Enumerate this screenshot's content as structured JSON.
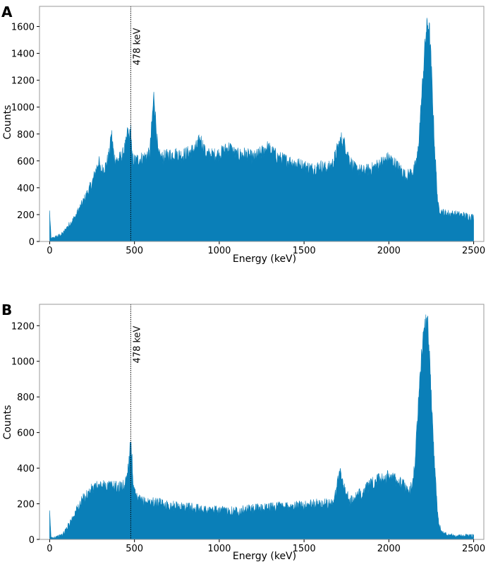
{
  "chart_data": [
    {
      "panel": "A",
      "type": "area",
      "xlabel": "Energy (keV)",
      "ylabel": "Counts",
      "xlim": [
        -60,
        2560
      ],
      "ylim": [
        0,
        1750
      ],
      "xticks": [
        0,
        500,
        1000,
        1500,
        2000,
        2500
      ],
      "yticks": [
        0,
        200,
        400,
        600,
        800,
        1000,
        1200,
        1400,
        1600
      ],
      "grid": false,
      "color": "#0a7fb8",
      "annotation": {
        "x": 478,
        "label": "478 keV"
      },
      "series": [
        {
          "x": [
            0,
            8,
            20,
            50,
            80,
            100,
            150,
            200,
            250,
            280,
            290,
            300,
            330,
            350,
            365,
            380,
            400,
            430,
            450,
            460,
            470,
            478,
            485,
            500,
            550,
            590,
            605,
            615,
            625,
            640,
            660,
            700,
            740,
            780,
            820,
            860,
            890,
            920,
            960,
            1000,
            1060,
            1100,
            1150,
            1200,
            1250,
            1280,
            1300,
            1350,
            1400,
            1450,
            1500,
            1550,
            1600,
            1640,
            1670,
            1700,
            1720,
            1740,
            1770,
            1800,
            1850,
            1900,
            1950,
            2000,
            2050,
            2080,
            2100,
            2150,
            2170,
            2190,
            2210,
            2220,
            2230,
            2240,
            2250,
            2270,
            2290,
            2310,
            2330,
            2400,
            2450,
            2500
          ],
          "y": [
            220,
            20,
            25,
            40,
            60,
            100,
            180,
            300,
            430,
            560,
            600,
            520,
            560,
            640,
            800,
            620,
            600,
            640,
            720,
            820,
            760,
            850,
            620,
            600,
            620,
            650,
            920,
            1100,
            900,
            640,
            620,
            640,
            650,
            640,
            660,
            690,
            760,
            650,
            640,
            650,
            700,
            640,
            650,
            620,
            660,
            700,
            680,
            620,
            600,
            580,
            560,
            540,
            560,
            540,
            580,
            700,
            760,
            720,
            600,
            540,
            520,
            540,
            580,
            620,
            560,
            520,
            480,
            530,
            640,
            1000,
            1400,
            1560,
            1620,
            1550,
            1300,
            700,
            260,
            220,
            210,
            200,
            190,
            180
          ]
        }
      ]
    },
    {
      "panel": "B",
      "type": "area",
      "xlabel": "Energy (keV)",
      "ylabel": "Counts",
      "xlim": [
        -60,
        2560
      ],
      "ylim": [
        0,
        1320
      ],
      "xticks": [
        0,
        500,
        1000,
        1500,
        2000,
        2500
      ],
      "yticks": [
        0,
        200,
        400,
        600,
        800,
        1000,
        1200
      ],
      "grid": false,
      "color": "#0a7fb8",
      "annotation": {
        "x": 478,
        "label": "478 keV"
      },
      "series": [
        {
          "x": [
            0,
            8,
            20,
            50,
            80,
            100,
            150,
            200,
            250,
            300,
            350,
            400,
            440,
            460,
            470,
            478,
            485,
            495,
            510,
            550,
            600,
            650,
            700,
            800,
            900,
            1000,
            1100,
            1200,
            1300,
            1400,
            1500,
            1600,
            1650,
            1680,
            1700,
            1710,
            1720,
            1740,
            1770,
            1800,
            1850,
            1900,
            1950,
            2000,
            2050,
            2100,
            2120,
            2150,
            2170,
            2190,
            2210,
            2220,
            2230,
            2240,
            2250,
            2270,
            2290,
            2310,
            2350,
            2400,
            2500
          ],
          "y": [
            140,
            10,
            10,
            15,
            30,
            60,
            150,
            230,
            280,
            300,
            300,
            290,
            300,
            380,
            470,
            580,
            450,
            280,
            230,
            210,
            210,
            200,
            190,
            180,
            170,
            160,
            160,
            170,
            180,
            190,
            190,
            200,
            200,
            230,
            330,
            380,
            350,
            280,
            210,
            230,
            270,
            310,
            340,
            350,
            330,
            290,
            250,
            380,
            680,
            1000,
            1180,
            1240,
            1180,
            1000,
            800,
            400,
            120,
            40,
            25,
            20,
            20
          ]
        }
      ]
    }
  ]
}
